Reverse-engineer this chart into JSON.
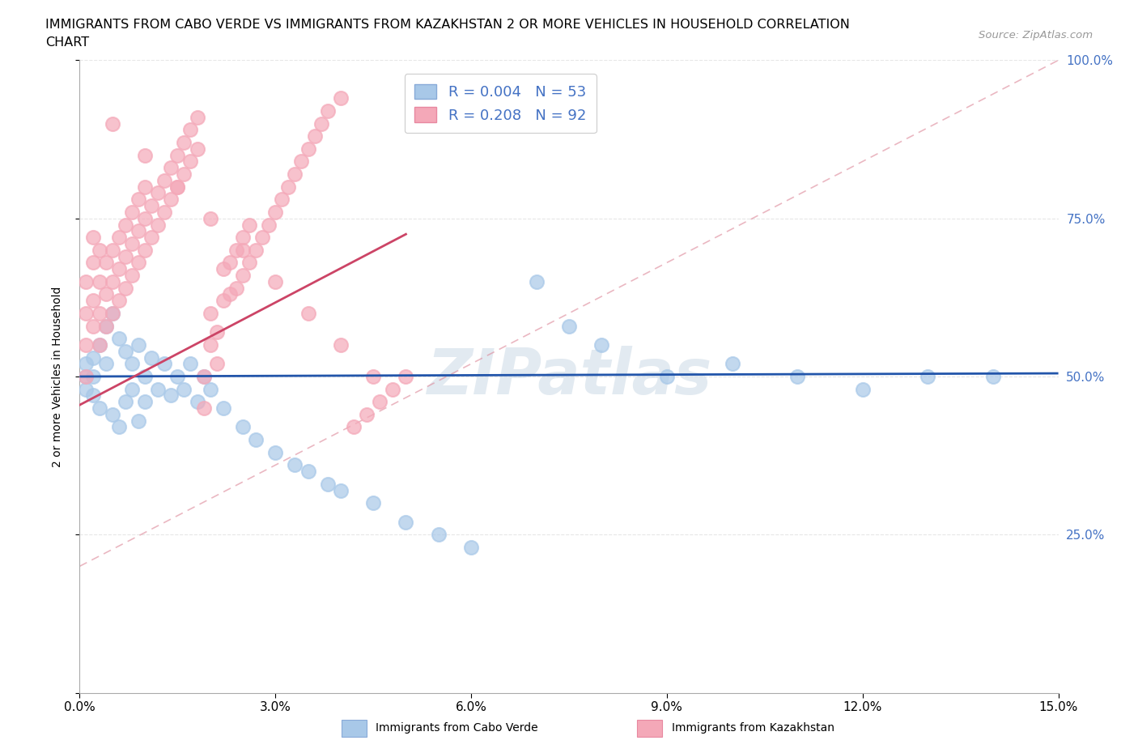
{
  "title_line1": "IMMIGRANTS FROM CABO VERDE VS IMMIGRANTS FROM KAZAKHSTAN 2 OR MORE VEHICLES IN HOUSEHOLD CORRELATION",
  "title_line2": "CHART",
  "source": "Source: ZipAtlas.com",
  "ylabel": "2 or more Vehicles in Household",
  "xlim": [
    0.0,
    0.15
  ],
  "ylim": [
    0.0,
    1.0
  ],
  "xtick_vals": [
    0.0,
    0.03,
    0.06,
    0.09,
    0.12,
    0.15
  ],
  "xtick_labels": [
    "0.0%",
    "3.0%",
    "6.0%",
    "9.0%",
    "12.0%",
    "15.0%"
  ],
  "ytick_vals": [
    0.0,
    0.25,
    0.5,
    0.75,
    1.0
  ],
  "ytick_labels_right": [
    "",
    "25.0%",
    "50.0%",
    "75.0%",
    "100.0%"
  ],
  "cabo_verde_R": 0.004,
  "cabo_verde_N": 53,
  "kazakhstan_R": 0.208,
  "kazakhstan_N": 92,
  "cabo_verde_color": "#a8c8e8",
  "kazakhstan_color": "#f4a8b8",
  "cabo_verde_line_color": "#2255aa",
  "kazakhstan_line_color": "#cc4466",
  "cabo_verde_trend_dashed_color": "#6699cc",
  "kazakhstan_trend_dashed_color": "#dd8899",
  "cabo_verde_scatter_x": [
    0.001,
    0.001,
    0.001,
    0.002,
    0.002,
    0.002,
    0.003,
    0.003,
    0.004,
    0.004,
    0.005,
    0.005,
    0.006,
    0.006,
    0.007,
    0.007,
    0.008,
    0.008,
    0.009,
    0.009,
    0.01,
    0.01,
    0.011,
    0.012,
    0.013,
    0.014,
    0.015,
    0.016,
    0.017,
    0.018,
    0.019,
    0.02,
    0.022,
    0.025,
    0.027,
    0.03,
    0.033,
    0.035,
    0.038,
    0.04,
    0.045,
    0.05,
    0.055,
    0.06,
    0.07,
    0.075,
    0.08,
    0.09,
    0.1,
    0.11,
    0.12,
    0.13,
    0.14
  ],
  "cabo_verde_scatter_y": [
    0.5,
    0.52,
    0.48,
    0.53,
    0.47,
    0.5,
    0.55,
    0.45,
    0.58,
    0.52,
    0.6,
    0.44,
    0.56,
    0.42,
    0.54,
    0.46,
    0.52,
    0.48,
    0.55,
    0.43,
    0.5,
    0.46,
    0.53,
    0.48,
    0.52,
    0.47,
    0.5,
    0.48,
    0.52,
    0.46,
    0.5,
    0.48,
    0.45,
    0.42,
    0.4,
    0.38,
    0.36,
    0.35,
    0.33,
    0.32,
    0.3,
    0.27,
    0.25,
    0.23,
    0.65,
    0.58,
    0.55,
    0.5,
    0.52,
    0.5,
    0.48,
    0.5,
    0.5
  ],
  "kazakhstan_scatter_x": [
    0.001,
    0.001,
    0.001,
    0.001,
    0.002,
    0.002,
    0.002,
    0.002,
    0.003,
    0.003,
    0.003,
    0.003,
    0.004,
    0.004,
    0.004,
    0.005,
    0.005,
    0.005,
    0.006,
    0.006,
    0.006,
    0.007,
    0.007,
    0.007,
    0.008,
    0.008,
    0.008,
    0.009,
    0.009,
    0.009,
    0.01,
    0.01,
    0.01,
    0.011,
    0.011,
    0.012,
    0.012,
    0.013,
    0.013,
    0.014,
    0.014,
    0.015,
    0.015,
    0.016,
    0.016,
    0.017,
    0.017,
    0.018,
    0.018,
    0.019,
    0.019,
    0.02,
    0.02,
    0.021,
    0.021,
    0.022,
    0.022,
    0.023,
    0.023,
    0.024,
    0.024,
    0.025,
    0.025,
    0.026,
    0.026,
    0.027,
    0.028,
    0.029,
    0.03,
    0.031,
    0.032,
    0.033,
    0.034,
    0.035,
    0.036,
    0.037,
    0.038,
    0.04,
    0.042,
    0.044,
    0.046,
    0.048,
    0.05,
    0.005,
    0.01,
    0.015,
    0.02,
    0.025,
    0.03,
    0.035,
    0.04,
    0.045
  ],
  "kazakhstan_scatter_y": [
    0.5,
    0.55,
    0.6,
    0.65,
    0.58,
    0.62,
    0.68,
    0.72,
    0.55,
    0.6,
    0.65,
    0.7,
    0.58,
    0.63,
    0.68,
    0.6,
    0.65,
    0.7,
    0.62,
    0.67,
    0.72,
    0.64,
    0.69,
    0.74,
    0.66,
    0.71,
    0.76,
    0.68,
    0.73,
    0.78,
    0.7,
    0.75,
    0.8,
    0.72,
    0.77,
    0.74,
    0.79,
    0.76,
    0.81,
    0.78,
    0.83,
    0.8,
    0.85,
    0.82,
    0.87,
    0.84,
    0.89,
    0.86,
    0.91,
    0.45,
    0.5,
    0.55,
    0.6,
    0.52,
    0.57,
    0.62,
    0.67,
    0.63,
    0.68,
    0.64,
    0.7,
    0.66,
    0.72,
    0.68,
    0.74,
    0.7,
    0.72,
    0.74,
    0.76,
    0.78,
    0.8,
    0.82,
    0.84,
    0.86,
    0.88,
    0.9,
    0.92,
    0.94,
    0.42,
    0.44,
    0.46,
    0.48,
    0.5,
    0.9,
    0.85,
    0.8,
    0.75,
    0.7,
    0.65,
    0.6,
    0.55,
    0.5
  ],
  "watermark": "ZIPatlas",
  "legend_text_color": "#4472c4",
  "right_ytick_color": "#4472c4",
  "grid_color": "#e0e0e0",
  "background_color": "#ffffff"
}
